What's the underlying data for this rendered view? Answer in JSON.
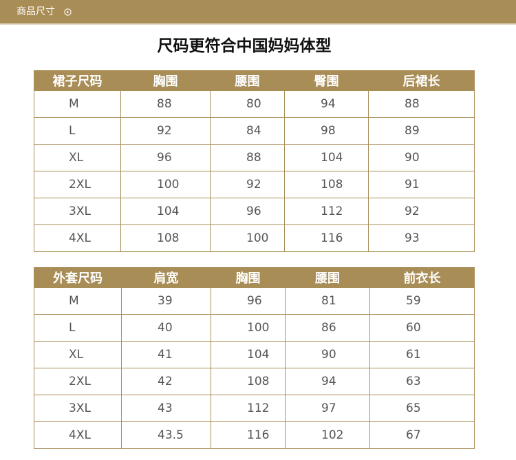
{
  "header": {
    "title": "商品尺寸",
    "arrow_icon": "circle-arrow-right-icon"
  },
  "page_title": "尺码更符合中国妈妈体型",
  "skirt_table": {
    "headers": [
      "裙子尺码",
      "胸围",
      "腰围",
      "臀围",
      "后裙长"
    ],
    "rows": [
      [
        "M",
        "88",
        "80",
        "94",
        "88"
      ],
      [
        "L",
        "92",
        "84",
        "98",
        "89"
      ],
      [
        "XL",
        "96",
        "88",
        "104",
        "90"
      ],
      [
        "2XL",
        "100",
        "92",
        "108",
        "91"
      ],
      [
        "3XL",
        "104",
        "96",
        "112",
        "92"
      ],
      [
        "4XL",
        "108",
        "100",
        "116",
        "93"
      ]
    ]
  },
  "coat_table": {
    "headers": [
      "外套尺码",
      "肩宽",
      "胸围",
      "腰围",
      "前衣长"
    ],
    "rows": [
      [
        "M",
        "39",
        "96",
        "81",
        "59"
      ],
      [
        "L",
        "40",
        "100",
        "86",
        "60"
      ],
      [
        "XL",
        "41",
        "104",
        "90",
        "61"
      ],
      [
        "2XL",
        "42",
        "108",
        "94",
        "63"
      ],
      [
        "3XL",
        "43",
        "112",
        "97",
        "65"
      ],
      [
        "4XL",
        "43.5",
        "116",
        "102",
        "67"
      ]
    ]
  },
  "colors": {
    "accent": "#a88d57",
    "text": "#555555"
  }
}
